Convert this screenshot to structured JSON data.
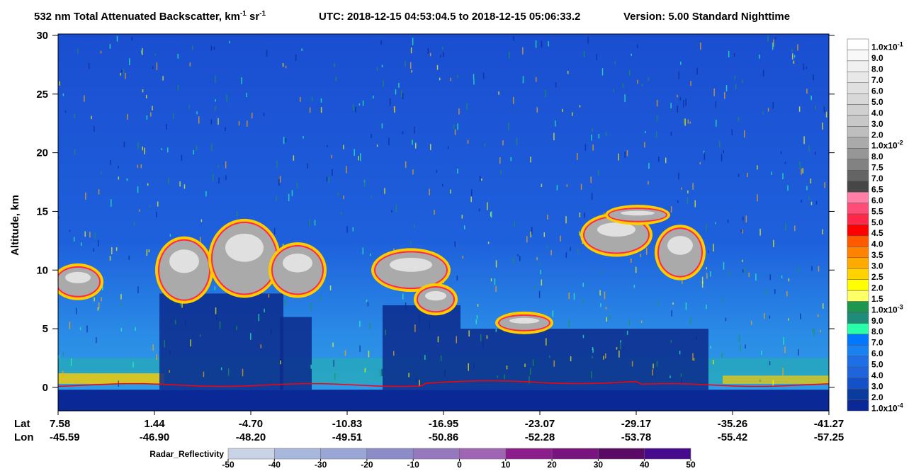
{
  "chart_data": {
    "type": "curtain",
    "title": {
      "parts": [
        {
          "text": "532 nm Total Attenuated Backscatter, km"
        },
        {
          "text": "-1",
          "sup": true
        },
        {
          "text": " sr"
        },
        {
          "text": "-1",
          "sup": true
        }
      ],
      "utc": "UTC:  2018-12-15 04:53:04.5  to  2018-12-15 05:06:33.2",
      "version": "Version: 5.00  Standard  Nighttime"
    },
    "y_label": "Altitude, km",
    "ylim": [
      -2,
      30
    ],
    "yticks": [
      0,
      5,
      10,
      15,
      20,
      25,
      30
    ],
    "x_rows": [
      {
        "name": "Lat",
        "values": [
          "7.58",
          "1.44",
          "-4.70",
          "-10.83",
          "-16.95",
          "-23.07",
          "-29.17",
          "-35.26",
          "-41.27"
        ]
      },
      {
        "name": "Lon",
        "values": [
          "-45.59",
          "-46.90",
          "-48.20",
          "-49.51",
          "-50.86",
          "-52.28",
          "-53.78",
          "-55.42",
          "-57.25"
        ]
      }
    ],
    "colorbar": [
      {
        "label": "1.0x10",
        "exp": "-1",
        "color": "#ffffff"
      },
      {
        "label": "9.0",
        "color": "#f8f8f8"
      },
      {
        "label": "8.0",
        "color": "#f0f0f0"
      },
      {
        "label": "7.0",
        "color": "#e8e8e8"
      },
      {
        "label": "6.0",
        "color": "#e0e0e0"
      },
      {
        "label": "5.0",
        "color": "#d8d8d8"
      },
      {
        "label": "4.0",
        "color": "#d0d0d0"
      },
      {
        "label": "3.0",
        "color": "#c8c8c8"
      },
      {
        "label": "2.0",
        "color": "#bebebe"
      },
      {
        "label": "1.0x10",
        "exp": "-2",
        "color": "#aaaaaa"
      },
      {
        "label": "8.0",
        "color": "#969696"
      },
      {
        "label": "7.5",
        "color": "#828282"
      },
      {
        "label": "7.0",
        "color": "#646464"
      },
      {
        "label": "6.5",
        "color": "#464646"
      },
      {
        "label": "6.0",
        "color": "#ff7fa8"
      },
      {
        "label": "5.5",
        "color": "#ff4d78"
      },
      {
        "label": "5.0",
        "color": "#ff2848"
      },
      {
        "label": "4.5",
        "color": "#ff0000"
      },
      {
        "label": "4.0",
        "color": "#ff5a00"
      },
      {
        "label": "3.5",
        "color": "#ff8200"
      },
      {
        "label": "3.0",
        "color": "#ffaa00"
      },
      {
        "label": "2.5",
        "color": "#ffd200"
      },
      {
        "label": "2.0",
        "color": "#ffff00"
      },
      {
        "label": "1.5",
        "color": "#ffff66"
      },
      {
        "label": "1.0x10",
        "exp": "-3",
        "color": "#1e9650"
      },
      {
        "label": "9.0",
        "color": "#1e8c78"
      },
      {
        "label": "8.0",
        "color": "#28ffaa"
      },
      {
        "label": "7.0",
        "color": "#0078ff"
      },
      {
        "label": "6.0",
        "color": "#1a82f0"
      },
      {
        "label": "5.0",
        "color": "#1e6ee6"
      },
      {
        "label": "4.0",
        "color": "#1e64dc"
      },
      {
        "label": "3.0",
        "color": "#1450c8"
      },
      {
        "label": "2.0",
        "color": "#0a3ca0"
      },
      {
        "label": "1.0x10",
        "exp": "-4",
        "color": "#0a2896"
      }
    ],
    "radar": {
      "name": "Radar_Reflectivity",
      "ticks": [
        -50,
        -40,
        -30,
        -20,
        -10,
        0,
        10,
        20,
        30,
        40,
        50
      ],
      "colors": [
        "#c8d4e6",
        "#a8b8dc",
        "#9aa6d6",
        "#8c8cc8",
        "#9678be",
        "#a064b4",
        "#8c1e8c",
        "#78147d",
        "#5a0a64",
        "#460a8c"
      ]
    }
  }
}
